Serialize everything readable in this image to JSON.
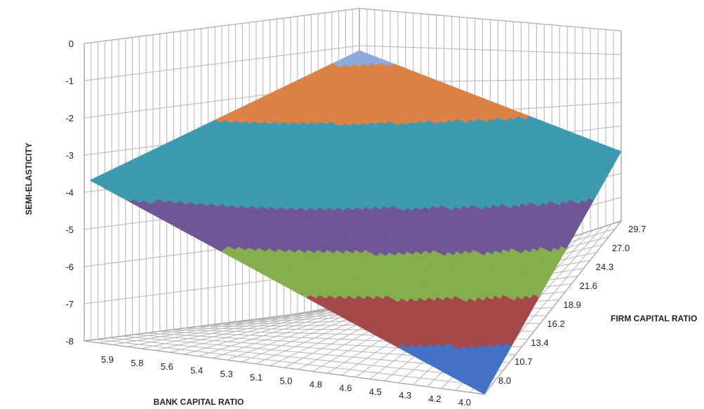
{
  "chart_data": {
    "type": "surface",
    "title": "",
    "zlabel": "SEMI-ELASTICITY",
    "xlabel": "BANK CAPITAL RATIO",
    "ylabel": "FIRM CAPITAL RATIO",
    "z_ticks": [
      "0",
      "-1",
      "-2",
      "-3",
      "-4",
      "-5",
      "-6",
      "-7",
      "-8"
    ],
    "zlim": [
      -8,
      0
    ],
    "bank_capital_ratio_ticks": [
      "5.9",
      "5.8",
      "5.6",
      "5.4",
      "5.3",
      "5.1",
      "5.0",
      "4.8",
      "4.6",
      "4.5",
      "4.3",
      "4.2",
      "4.0"
    ],
    "firm_capital_ratio_ticks": [
      "8.0",
      "10.7",
      "13.4",
      "16.2",
      "18.9",
      "21.6",
      "24.3",
      "27.0",
      "29.7"
    ],
    "corner_values": [
      {
        "bank_capital_ratio": "5.9",
        "firm_capital_ratio": "8.0",
        "semi_elasticity": -3.6
      },
      {
        "bank_capital_ratio": "5.9",
        "firm_capital_ratio": "29.7",
        "semi_elasticity": -0.1
      },
      {
        "bank_capital_ratio": "4.0",
        "firm_capital_ratio": "8.0",
        "semi_elasticity": -8.0
      },
      {
        "bank_capital_ratio": "4.0",
        "firm_capital_ratio": "29.7",
        "semi_elasticity": -3.0
      }
    ],
    "bands": [
      {
        "range": "-8--7",
        "color": "#4472c4"
      },
      {
        "range": "-7--6",
        "color": "#a5484a"
      },
      {
        "range": "-6--5",
        "color": "#86ad4e"
      },
      {
        "range": "-5--4",
        "color": "#6f5696"
      },
      {
        "range": "-4--3",
        "color": "#3d9bb1"
      },
      {
        "range": "-3--2",
        "color": "#3d9bb1"
      },
      {
        "range": "-2--1",
        "color": "#db8346"
      },
      {
        "range": "-1-0",
        "color": "#8ea9db"
      }
    ],
    "grid": true,
    "legend": "none"
  }
}
